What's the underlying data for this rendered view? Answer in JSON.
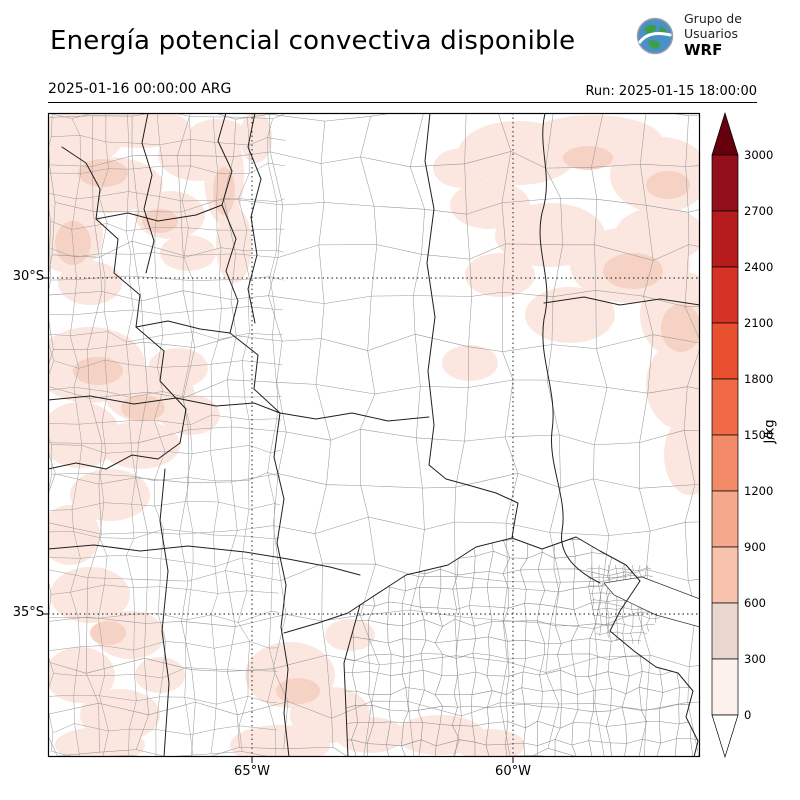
{
  "header": {
    "title": "Energía potencial convectiva disponible",
    "valid_time": "2025-01-16 00:00:00 ARG",
    "run_label": "Run: 2025-01-15 18:00:00"
  },
  "logo": {
    "line1": "Grupo de",
    "line2": "Usuarios",
    "line3": "WRF"
  },
  "map": {
    "lat_ticks": [
      "30°S",
      "35°S"
    ],
    "lon_ticks": [
      "65°W",
      "60°W"
    ]
  },
  "colorbar": {
    "unit": "J/kg",
    "tick_labels_top_to_bottom": [
      "3000",
      "2700",
      "2400",
      "2100",
      "1800",
      "1500",
      "1200",
      "900",
      "600",
      "300",
      "0"
    ],
    "segment_colors_top_to_bottom": [
      "#91101b",
      "#b71c1c",
      "#d63226",
      "#e8502f",
      "#ef6a45",
      "#f28a67",
      "#f5a88c",
      "#f7c3ac",
      "#e8d6cf",
      "#fdf1ec"
    ],
    "over_color": "#67000d",
    "under_color": "#ffffff"
  },
  "shading": {
    "light": "#fbe7df",
    "medium": "#f6d2c4"
  }
}
